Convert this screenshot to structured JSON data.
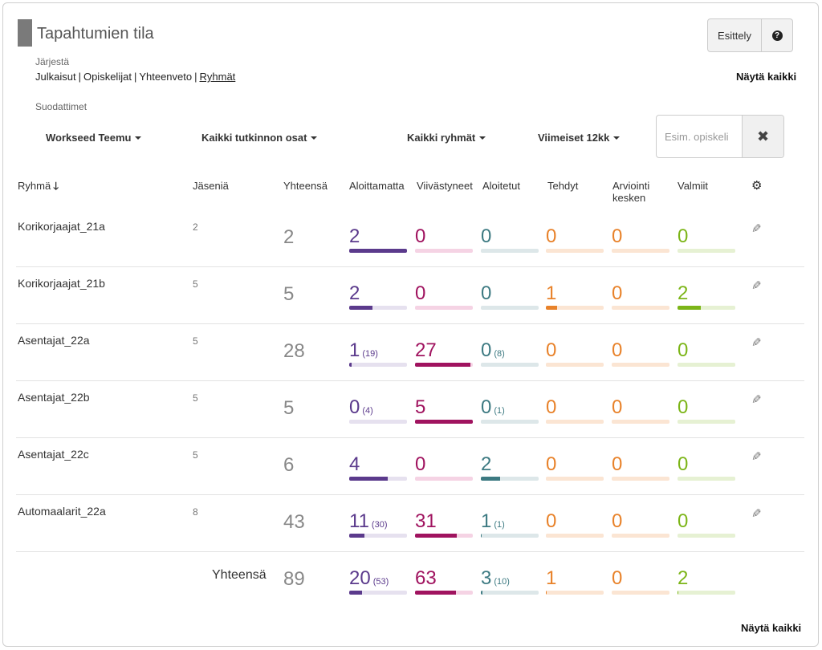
{
  "header": {
    "title": "Tapahtumien tila",
    "intro_button": "Esittely",
    "help_icon": "question-circle-icon"
  },
  "sort": {
    "label": "Järjestä",
    "links": [
      "Julkaisut",
      "Opiskelijat",
      "Yhteenveto",
      "Ryhmät"
    ],
    "active": "Ryhmät"
  },
  "show_all": "Näytä kaikki",
  "filters": {
    "label": "Suodattimet",
    "teacher": "Workseed Teemu",
    "units": "Kaikki tutkinnon osat",
    "groups": "Kaikki ryhmät",
    "period": "Viimeiset 12kk",
    "search_placeholder": "Esim. opiskeli",
    "clear_icon": "close-icon"
  },
  "columns": {
    "group": "Ryhmä",
    "members": "Jäseniä",
    "total": "Yhteensä",
    "not_started": "Aloittamatta",
    "delayed": "Viivästyneet",
    "started": "Aloitetut",
    "done": "Tehdyt",
    "in_review": "Arviointi kesken",
    "completed": "Valmiit",
    "settings_icon": "gear-icon"
  },
  "colors": {
    "not_started": "#5b3a8c",
    "delayed": "#a0135f",
    "started": "#3d7a82",
    "done": "#e8822a",
    "in_review": "#e8822a",
    "completed": "#7cb518"
  },
  "rows": [
    {
      "name": "Korikorjaajat_21a",
      "members": "2",
      "total": "2",
      "not_started": {
        "v": "2",
        "sub": "",
        "frac": 1.0
      },
      "delayed": {
        "v": "0",
        "sub": "",
        "frac": 0
      },
      "started": {
        "v": "0",
        "sub": "",
        "frac": 0
      },
      "done": {
        "v": "0",
        "sub": "",
        "frac": 0
      },
      "in_review": {
        "v": "0",
        "sub": "",
        "frac": 0
      },
      "completed": {
        "v": "0",
        "sub": "",
        "frac": 0
      }
    },
    {
      "name": "Korikorjaajat_21b",
      "members": "5",
      "total": "5",
      "not_started": {
        "v": "2",
        "sub": "",
        "frac": 0.4
      },
      "delayed": {
        "v": "0",
        "sub": "",
        "frac": 0
      },
      "started": {
        "v": "0",
        "sub": "",
        "frac": 0
      },
      "done": {
        "v": "1",
        "sub": "",
        "frac": 0.2
      },
      "in_review": {
        "v": "0",
        "sub": "",
        "frac": 0
      },
      "completed": {
        "v": "2",
        "sub": "",
        "frac": 0.4
      }
    },
    {
      "name": "Asentajat_22a",
      "members": "5",
      "total": "28",
      "not_started": {
        "v": "1",
        "sub": "(19)",
        "frac": 0.04
      },
      "delayed": {
        "v": "27",
        "sub": "",
        "frac": 0.96
      },
      "started": {
        "v": "0",
        "sub": "(8)",
        "frac": 0
      },
      "done": {
        "v": "0",
        "sub": "",
        "frac": 0
      },
      "in_review": {
        "v": "0",
        "sub": "",
        "frac": 0
      },
      "completed": {
        "v": "0",
        "sub": "",
        "frac": 0
      }
    },
    {
      "name": "Asentajat_22b",
      "members": "5",
      "total": "5",
      "not_started": {
        "v": "0",
        "sub": "(4)",
        "frac": 0
      },
      "delayed": {
        "v": "5",
        "sub": "",
        "frac": 1.0
      },
      "started": {
        "v": "0",
        "sub": "(1)",
        "frac": 0
      },
      "done": {
        "v": "0",
        "sub": "",
        "frac": 0
      },
      "in_review": {
        "v": "0",
        "sub": "",
        "frac": 0
      },
      "completed": {
        "v": "0",
        "sub": "",
        "frac": 0
      }
    },
    {
      "name": "Asentajat_22c",
      "members": "5",
      "total": "6",
      "not_started": {
        "v": "4",
        "sub": "",
        "frac": 0.67
      },
      "delayed": {
        "v": "0",
        "sub": "",
        "frac": 0
      },
      "started": {
        "v": "2",
        "sub": "",
        "frac": 0.33
      },
      "done": {
        "v": "0",
        "sub": "",
        "frac": 0
      },
      "in_review": {
        "v": "0",
        "sub": "",
        "frac": 0
      },
      "completed": {
        "v": "0",
        "sub": "",
        "frac": 0
      }
    },
    {
      "name": "Automaalarit_22a",
      "members": "8",
      "total": "43",
      "not_started": {
        "v": "11",
        "sub": "(30)",
        "frac": 0.26
      },
      "delayed": {
        "v": "31",
        "sub": "",
        "frac": 0.72
      },
      "started": {
        "v": "1",
        "sub": "(1)",
        "frac": 0.02
      },
      "done": {
        "v": "0",
        "sub": "",
        "frac": 0
      },
      "in_review": {
        "v": "0",
        "sub": "",
        "frac": 0
      },
      "completed": {
        "v": "0",
        "sub": "",
        "frac": 0
      }
    }
  ],
  "totals": {
    "label": "Yhteensä",
    "total": "89",
    "not_started": {
      "v": "20",
      "sub": "(53)",
      "frac": 0.22
    },
    "delayed": {
      "v": "63",
      "sub": "",
      "frac": 0.71
    },
    "started": {
      "v": "3",
      "sub": "(10)",
      "frac": 0.03
    },
    "done": {
      "v": "1",
      "sub": "",
      "frac": 0.01
    },
    "in_review": {
      "v": "0",
      "sub": "",
      "frac": 0
    },
    "completed": {
      "v": "2",
      "sub": "",
      "frac": 0.02
    }
  }
}
